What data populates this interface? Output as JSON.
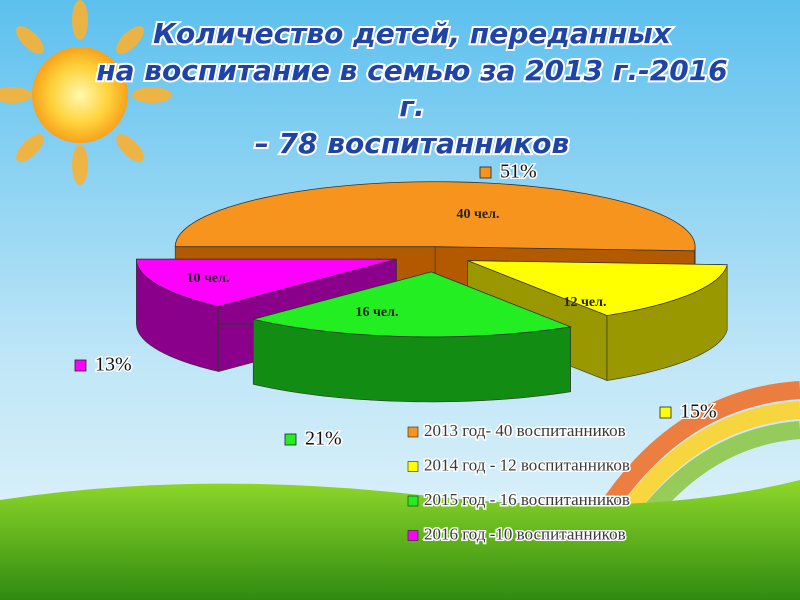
{
  "chart_data": {
    "type": "pie",
    "title": [
      "Количество  детей, переданных",
      "на воспитание в семью за 2013 г.-2016",
      "г.",
      "– 78 воспитанников"
    ],
    "categories": [
      "2013 год- 40 воспитанников",
      "2014 год - 12 воспитанников",
      "2015 год - 16 воспитанников",
      "2016 год -10 воспитанников"
    ],
    "values": [
      51,
      15,
      21,
      13
    ],
    "value_labels": [
      "51%",
      "15%",
      "21%",
      "13%"
    ],
    "counts": [
      40,
      12,
      16,
      10
    ],
    "count_labels": [
      "40 чел.",
      "12 чел.",
      "16 чел.",
      "10 чел."
    ],
    "colors": [
      "#f7941d",
      "#ffff00",
      "#22ee22",
      "#ff00ff"
    ],
    "side_colors": [
      "#b35a00",
      "#9a9800",
      "#138c13",
      "#8a008a"
    ]
  }
}
